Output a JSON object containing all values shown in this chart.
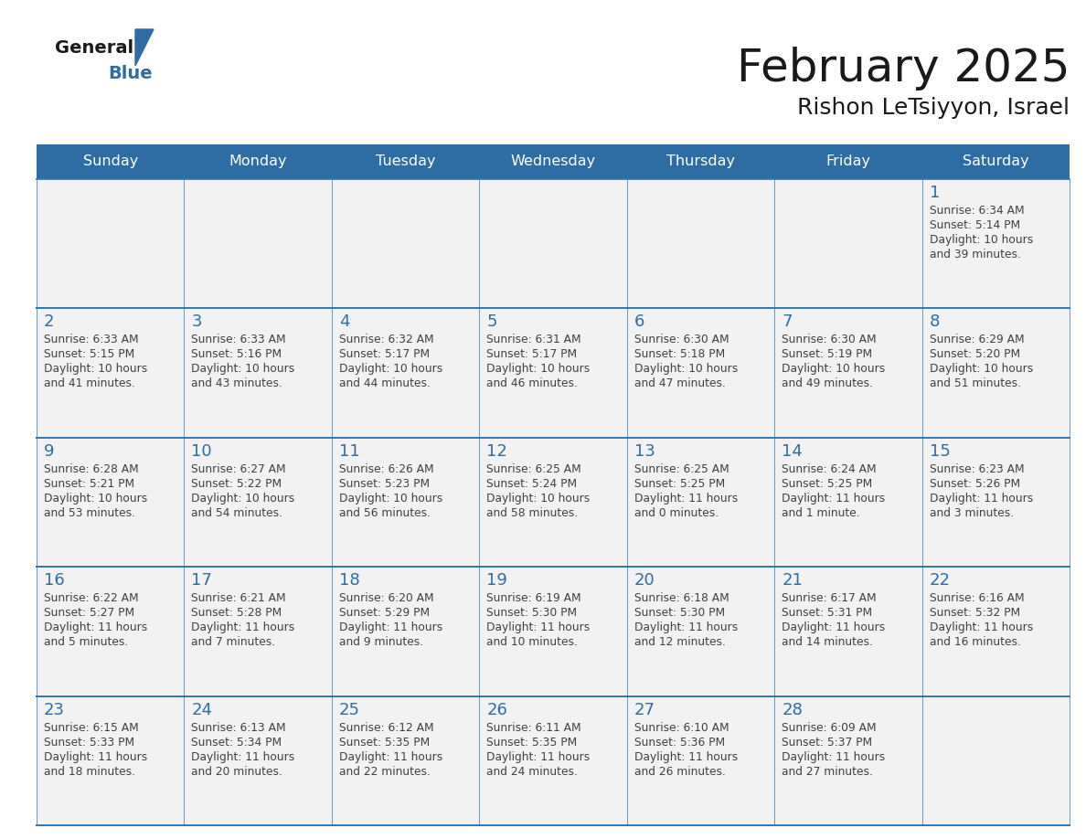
{
  "title": "February 2025",
  "subtitle": "Rishon LeTsiyyon, Israel",
  "days_of_week": [
    "Sunday",
    "Monday",
    "Tuesday",
    "Wednesday",
    "Thursday",
    "Friday",
    "Saturday"
  ],
  "header_bg": "#2E6DA4",
  "header_text": "#FFFFFF",
  "cell_bg": "#FFFFFF",
  "cell_alt_bg": "#F2F2F2",
  "cell_border": "#2E75B6",
  "day_number_color": "#2E6DA4",
  "info_text_color": "#404040",
  "title_color": "#1a1a1a",
  "logo_general_color": "#1a1a1a",
  "logo_blue_color": "#2E6DA4",
  "calendar_data": [
    [
      null,
      null,
      null,
      null,
      null,
      null,
      {
        "day": 1,
        "sunrise": "6:34 AM",
        "sunset": "5:14 PM",
        "daylight": "10 hours",
        "daylight2": "and 39 minutes."
      }
    ],
    [
      {
        "day": 2,
        "sunrise": "6:33 AM",
        "sunset": "5:15 PM",
        "daylight": "10 hours",
        "daylight2": "and 41 minutes."
      },
      {
        "day": 3,
        "sunrise": "6:33 AM",
        "sunset": "5:16 PM",
        "daylight": "10 hours",
        "daylight2": "and 43 minutes."
      },
      {
        "day": 4,
        "sunrise": "6:32 AM",
        "sunset": "5:17 PM",
        "daylight": "10 hours",
        "daylight2": "and 44 minutes."
      },
      {
        "day": 5,
        "sunrise": "6:31 AM",
        "sunset": "5:17 PM",
        "daylight": "10 hours",
        "daylight2": "and 46 minutes."
      },
      {
        "day": 6,
        "sunrise": "6:30 AM",
        "sunset": "5:18 PM",
        "daylight": "10 hours",
        "daylight2": "and 47 minutes."
      },
      {
        "day": 7,
        "sunrise": "6:30 AM",
        "sunset": "5:19 PM",
        "daylight": "10 hours",
        "daylight2": "and 49 minutes."
      },
      {
        "day": 8,
        "sunrise": "6:29 AM",
        "sunset": "5:20 PM",
        "daylight": "10 hours",
        "daylight2": "and 51 minutes."
      }
    ],
    [
      {
        "day": 9,
        "sunrise": "6:28 AM",
        "sunset": "5:21 PM",
        "daylight": "10 hours",
        "daylight2": "and 53 minutes."
      },
      {
        "day": 10,
        "sunrise": "6:27 AM",
        "sunset": "5:22 PM",
        "daylight": "10 hours",
        "daylight2": "and 54 minutes."
      },
      {
        "day": 11,
        "sunrise": "6:26 AM",
        "sunset": "5:23 PM",
        "daylight": "10 hours",
        "daylight2": "and 56 minutes."
      },
      {
        "day": 12,
        "sunrise": "6:25 AM",
        "sunset": "5:24 PM",
        "daylight": "10 hours",
        "daylight2": "and 58 minutes."
      },
      {
        "day": 13,
        "sunrise": "6:25 AM",
        "sunset": "5:25 PM",
        "daylight": "11 hours",
        "daylight2": "and 0 minutes."
      },
      {
        "day": 14,
        "sunrise": "6:24 AM",
        "sunset": "5:25 PM",
        "daylight": "11 hours",
        "daylight2": "and 1 minute."
      },
      {
        "day": 15,
        "sunrise": "6:23 AM",
        "sunset": "5:26 PM",
        "daylight": "11 hours",
        "daylight2": "and 3 minutes."
      }
    ],
    [
      {
        "day": 16,
        "sunrise": "6:22 AM",
        "sunset": "5:27 PM",
        "daylight": "11 hours",
        "daylight2": "and 5 minutes."
      },
      {
        "day": 17,
        "sunrise": "6:21 AM",
        "sunset": "5:28 PM",
        "daylight": "11 hours",
        "daylight2": "and 7 minutes."
      },
      {
        "day": 18,
        "sunrise": "6:20 AM",
        "sunset": "5:29 PM",
        "daylight": "11 hours",
        "daylight2": "and 9 minutes."
      },
      {
        "day": 19,
        "sunrise": "6:19 AM",
        "sunset": "5:30 PM",
        "daylight": "11 hours",
        "daylight2": "and 10 minutes."
      },
      {
        "day": 20,
        "sunrise": "6:18 AM",
        "sunset": "5:30 PM",
        "daylight": "11 hours",
        "daylight2": "and 12 minutes."
      },
      {
        "day": 21,
        "sunrise": "6:17 AM",
        "sunset": "5:31 PM",
        "daylight": "11 hours",
        "daylight2": "and 14 minutes."
      },
      {
        "day": 22,
        "sunrise": "6:16 AM",
        "sunset": "5:32 PM",
        "daylight": "11 hours",
        "daylight2": "and 16 minutes."
      }
    ],
    [
      {
        "day": 23,
        "sunrise": "6:15 AM",
        "sunset": "5:33 PM",
        "daylight": "11 hours",
        "daylight2": "and 18 minutes."
      },
      {
        "day": 24,
        "sunrise": "6:13 AM",
        "sunset": "5:34 PM",
        "daylight": "11 hours",
        "daylight2": "and 20 minutes."
      },
      {
        "day": 25,
        "sunrise": "6:12 AM",
        "sunset": "5:35 PM",
        "daylight": "11 hours",
        "daylight2": "and 22 minutes."
      },
      {
        "day": 26,
        "sunrise": "6:11 AM",
        "sunset": "5:35 PM",
        "daylight": "11 hours",
        "daylight2": "and 24 minutes."
      },
      {
        "day": 27,
        "sunrise": "6:10 AM",
        "sunset": "5:36 PM",
        "daylight": "11 hours",
        "daylight2": "and 26 minutes."
      },
      {
        "day": 28,
        "sunrise": "6:09 AM",
        "sunset": "5:37 PM",
        "daylight": "11 hours",
        "daylight2": "and 27 minutes."
      },
      null
    ]
  ]
}
